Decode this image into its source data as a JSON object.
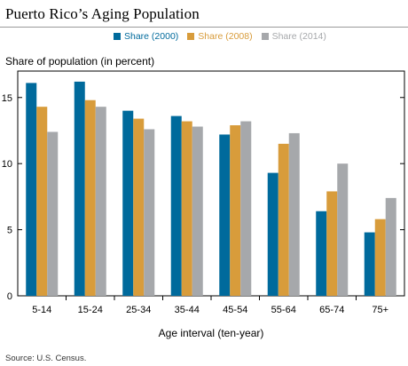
{
  "header": {
    "title": "Puerto Rico’s Aging Population"
  },
  "chart_data": {
    "type": "bar",
    "title": "Puerto Rico’s Aging Population",
    "ylabel": "Share of population (in percent)",
    "xlabel": "Age interval (ten-year)",
    "ylim": [
      0,
      17
    ],
    "yticks": [
      0,
      5,
      10,
      15
    ],
    "grid": false,
    "legend_position": "top",
    "categories": [
      "5-14",
      "15-24",
      "25-34",
      "35-44",
      "45-54",
      "55-64",
      "65-74",
      "75+"
    ],
    "series": [
      {
        "name": "Share (2000)",
        "color": "#006a9c",
        "values": [
          16.1,
          16.2,
          14.0,
          13.6,
          12.2,
          9.3,
          6.4,
          4.8
        ]
      },
      {
        "name": "Share (2008)",
        "color": "#d89c3b",
        "values": [
          14.3,
          14.8,
          13.4,
          13.2,
          12.9,
          11.5,
          7.9,
          5.8
        ]
      },
      {
        "name": "Share (2014)",
        "color": "#a6a8ab",
        "values": [
          12.4,
          14.3,
          12.6,
          12.8,
          13.2,
          12.3,
          10.0,
          7.4
        ]
      }
    ]
  },
  "source": "Source: U.S. Census."
}
